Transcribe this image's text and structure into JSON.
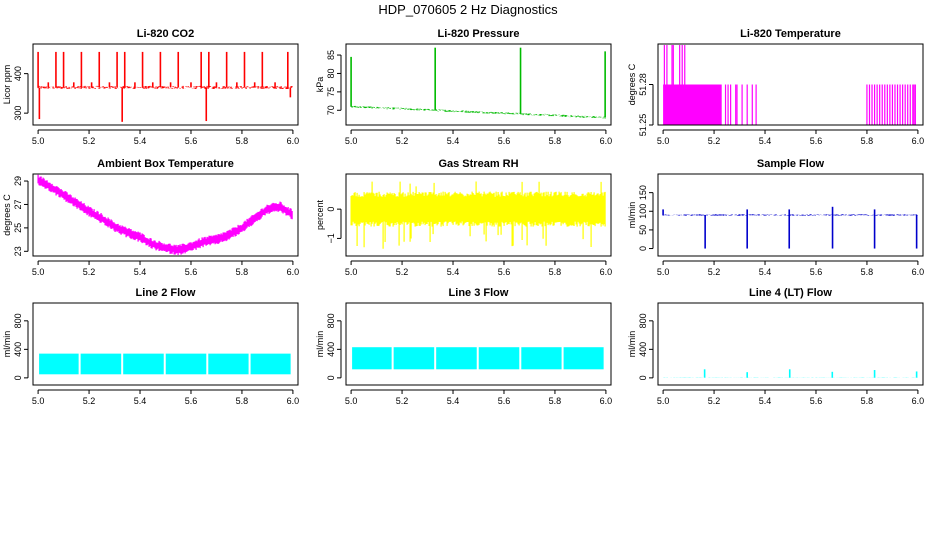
{
  "page": {
    "title": "HDP_070605  2 Hz Diagnostics"
  },
  "chart_data": [
    {
      "type": "line",
      "title": "Li-820 CO2",
      "ylabel": "Licor ppm",
      "color": "#ff0000",
      "xlim": [
        4.98,
        6.02
      ],
      "ylim": [
        270,
        475
      ],
      "xticks": [
        5.0,
        5.2,
        5.4,
        5.6,
        5.8,
        6.0
      ],
      "xtick_labels": [
        "5.0",
        "5.2",
        "5.4",
        "5.6",
        "5.8",
        "6.0"
      ],
      "yticks": [
        300,
        400
      ],
      "ytick_labels": [
        "300",
        "400"
      ],
      "series": [
        {
          "name": "CO2",
          "pattern": "noise",
          "base": 365,
          "amp": 4,
          "spikes": [
            {
              "x": 5.0,
              "to": 455
            },
            {
              "x": 5.07,
              "to": 455
            },
            {
              "x": 5.1,
              "to": 455
            },
            {
              "x": 5.17,
              "to": 455
            },
            {
              "x": 5.24,
              "to": 455
            },
            {
              "x": 5.31,
              "to": 455
            },
            {
              "x": 5.34,
              "to": 455
            },
            {
              "x": 5.41,
              "to": 455
            },
            {
              "x": 5.48,
              "to": 455
            },
            {
              "x": 5.55,
              "to": 455
            },
            {
              "x": 5.64,
              "to": 455
            },
            {
              "x": 5.67,
              "to": 455
            },
            {
              "x": 5.74,
              "to": 455
            },
            {
              "x": 5.81,
              "to": 455
            },
            {
              "x": 5.88,
              "to": 455
            },
            {
              "x": 5.98,
              "to": 455
            },
            {
              "x": 5.005,
              "to": 285
            },
            {
              "x": 5.33,
              "to": 278
            },
            {
              "x": 5.66,
              "to": 280
            },
            {
              "x": 5.99,
              "to": 340
            },
            {
              "x": 5.04,
              "to": 378
            },
            {
              "x": 5.14,
              "to": 378
            },
            {
              "x": 5.21,
              "to": 378
            },
            {
              "x": 5.28,
              "to": 378
            },
            {
              "x": 5.38,
              "to": 378
            },
            {
              "x": 5.45,
              "to": 378
            },
            {
              "x": 5.52,
              "to": 378
            },
            {
              "x": 5.6,
              "to": 378
            },
            {
              "x": 5.7,
              "to": 378
            },
            {
              "x": 5.78,
              "to": 378
            },
            {
              "x": 5.85,
              "to": 378
            },
            {
              "x": 5.93,
              "to": 378
            }
          ]
        }
      ]
    },
    {
      "type": "line",
      "title": "Li-820 Pressure",
      "ylabel": "kPa",
      "color": "#00bb00",
      "xlim": [
        4.98,
        6.02
      ],
      "ylim": [
        66,
        88
      ],
      "xticks": [
        5.0,
        5.2,
        5.4,
        5.6,
        5.8,
        6.0
      ],
      "xtick_labels": [
        "5.0",
        "5.2",
        "5.4",
        "5.6",
        "5.8",
        "6.0"
      ],
      "yticks": [
        70,
        75,
        80,
        85
      ],
      "ytick_labels": [
        "70",
        "75",
        "80",
        "85"
      ],
      "series": [
        {
          "name": "Pressure",
          "pattern": "decay",
          "start": 71,
          "end": 68,
          "amp": 0.3,
          "spikes": [
            {
              "x": 5.0,
              "to": 84.5
            },
            {
              "x": 5.33,
              "to": 87
            },
            {
              "x": 5.665,
              "to": 87
            },
            {
              "x": 5.997,
              "to": 86
            }
          ]
        }
      ]
    },
    {
      "type": "line",
      "title": "Li-820 Temperature",
      "ylabel": "degrees C",
      "color": "#ff00ff",
      "xlim": [
        4.98,
        6.02
      ],
      "ylim": [
        51.25,
        51.31
      ],
      "xticks": [
        5.0,
        5.2,
        5.4,
        5.6,
        5.8,
        6.0
      ],
      "xtick_labels": [
        "5.0",
        "5.2",
        "5.4",
        "5.6",
        "5.8",
        "6.0"
      ],
      "yticks": [
        51.25,
        51.28
      ],
      "ytick_labels": [
        "51.25",
        "51.28"
      ],
      "series": [
        {
          "name": "Temperature",
          "pattern": "steps",
          "base": 51.25,
          "high": 51.28,
          "top": 51.31,
          "fill_range": [
            5.0,
            5.23
          ],
          "top_spikes": [
            5.005,
            5.015,
            5.035,
            5.04,
            5.065,
            5.075,
            5.085
          ],
          "sparse": [
            5.245,
            5.255,
            5.265,
            5.285,
            5.29,
            5.31,
            5.33,
            5.35,
            5.365,
            5.8,
            5.81,
            5.82,
            5.83,
            5.84,
            5.85,
            5.86,
            5.87,
            5.88,
            5.89,
            5.9,
            5.91,
            5.92,
            5.93,
            5.94,
            5.95,
            5.96,
            5.97,
            5.98,
            5.985,
            5.99
          ]
        }
      ]
    },
    {
      "type": "line",
      "title": "Ambient Box Temperature",
      "ylabel": "degrees C",
      "color": "#ff00ff",
      "xlim": [
        4.98,
        6.02
      ],
      "ylim": [
        22.6,
        29.6
      ],
      "xticks": [
        5.0,
        5.2,
        5.4,
        5.6,
        5.8,
        6.0
      ],
      "xtick_labels": [
        "5.0",
        "5.2",
        "5.4",
        "5.6",
        "5.8",
        "6.0"
      ],
      "yticks": [
        23,
        25,
        27,
        29
      ],
      "ytick_labels": [
        "23",
        "25",
        "27",
        "29"
      ],
      "series": [
        {
          "name": "Ambient",
          "pattern": "curve",
          "amp": 0.45,
          "x": [
            5.0,
            5.05,
            5.1,
            5.15,
            5.2,
            5.25,
            5.3,
            5.35,
            5.4,
            5.45,
            5.5,
            5.55,
            5.6,
            5.65,
            5.7,
            5.75,
            5.8,
            5.85,
            5.9,
            5.95,
            6.0
          ],
          "y": [
            29.1,
            28.5,
            27.8,
            27.1,
            26.4,
            25.8,
            25.1,
            24.6,
            24.2,
            23.6,
            23.3,
            23.1,
            23.4,
            23.8,
            24.0,
            24.4,
            25.0,
            25.8,
            26.6,
            26.8,
            26.1
          ]
        }
      ]
    },
    {
      "type": "line",
      "title": "Gas Stream RH",
      "ylabel": "percent",
      "color": "#ffff00",
      "xlim": [
        4.98,
        6.02
      ],
      "ylim": [
        -1.6,
        1.2
      ],
      "xticks": [
        5.0,
        5.2,
        5.4,
        5.6,
        5.8,
        6.0
      ],
      "xtick_labels": [
        "5.0",
        "5.2",
        "5.4",
        "5.6",
        "5.8",
        "6.0"
      ],
      "yticks": [
        -1,
        0
      ],
      "ytick_labels": [
        "−1",
        "0"
      ],
      "series": [
        {
          "name": "RH",
          "pattern": "band",
          "low": -0.6,
          "high": 0.6,
          "min_spike": -1.4,
          "max_spike": 0.95
        }
      ]
    },
    {
      "type": "line",
      "title": "Sample Flow",
      "ylabel": "ml/min",
      "color": "#0000cc",
      "xlim": [
        4.98,
        6.02
      ],
      "ylim": [
        -20,
        200
      ],
      "xticks": [
        5.0,
        5.2,
        5.4,
        5.6,
        5.8,
        6.0
      ],
      "xtick_labels": [
        "5.0",
        "5.2",
        "5.4",
        "5.6",
        "5.8",
        "6.0"
      ],
      "yticks": [
        0,
        50,
        100,
        150
      ],
      "ytick_labels": [
        "0",
        "50",
        "100",
        "150"
      ],
      "series": [
        {
          "name": "Sample",
          "pattern": "noise",
          "base": 90,
          "amp": 2,
          "spikes": [
            {
              "x": 5.0,
              "to": 105
            },
            {
              "x": 5.165,
              "to": 0
            },
            {
              "x": 5.33,
              "to": 105
            },
            {
              "x": 5.33,
              "to": 0
            },
            {
              "x": 5.495,
              "to": 105
            },
            {
              "x": 5.495,
              "to": 0
            },
            {
              "x": 5.665,
              "to": 112
            },
            {
              "x": 5.665,
              "to": 0
            },
            {
              "x": 5.83,
              "to": 105
            },
            {
              "x": 5.83,
              "to": 0
            },
            {
              "x": 5.995,
              "to": 0
            }
          ]
        }
      ]
    },
    {
      "type": "line",
      "title": "Line 2 Flow",
      "ylabel": "ml/min",
      "color": "#00ffff",
      "xlim": [
        4.98,
        6.02
      ],
      "ylim": [
        -100,
        1050
      ],
      "xticks": [
        5.0,
        5.2,
        5.4,
        5.6,
        5.8,
        6.0
      ],
      "xtick_labels": [
        "5.0",
        "5.2",
        "5.4",
        "5.6",
        "5.8",
        "6.0"
      ],
      "yticks": [
        0,
        400,
        800
      ],
      "ytick_labels": [
        "0",
        "400",
        "800"
      ],
      "series": [
        {
          "name": "Line 2",
          "pattern": "blocks",
          "low": 50,
          "high": 340,
          "gaps": [
            5.163,
            5.33,
            5.497,
            5.664,
            5.83
          ],
          "end": 5.995
        }
      ]
    },
    {
      "type": "line",
      "title": "Line 3 Flow",
      "ylabel": "ml/min",
      "color": "#00ffff",
      "xlim": [
        4.98,
        6.02
      ],
      "ylim": [
        -100,
        1050
      ],
      "xticks": [
        5.0,
        5.2,
        5.4,
        5.6,
        5.8,
        6.0
      ],
      "xtick_labels": [
        "5.0",
        "5.2",
        "5.4",
        "5.6",
        "5.8",
        "6.0"
      ],
      "yticks": [
        0,
        400,
        800
      ],
      "ytick_labels": [
        "0",
        "400",
        "800"
      ],
      "series": [
        {
          "name": "Line 3",
          "pattern": "blocks",
          "low": 120,
          "high": 430,
          "gaps": [
            5.163,
            5.33,
            5.497,
            5.664,
            5.83
          ],
          "end": 5.995
        }
      ]
    },
    {
      "type": "line",
      "title": "Line 4 (LT) Flow",
      "ylabel": "ml/min",
      "color": "#00ffff",
      "xlim": [
        4.98,
        6.02
      ],
      "ylim": [
        -100,
        1050
      ],
      "xticks": [
        5.0,
        5.2,
        5.4,
        5.6,
        5.8,
        6.0
      ],
      "xtick_labels": [
        "5.0",
        "5.2",
        "5.4",
        "5.6",
        "5.8",
        "6.0"
      ],
      "yticks": [
        0,
        400,
        800
      ],
      "ytick_labels": [
        "0",
        "400",
        "800"
      ],
      "series": [
        {
          "name": "Line 4",
          "pattern": "noise",
          "base": 3,
          "amp": 2,
          "spikes": [
            {
              "x": 5.163,
              "to": 120
            },
            {
              "x": 5.33,
              "to": 80
            },
            {
              "x": 5.497,
              "to": 120
            },
            {
              "x": 5.664,
              "to": 85
            },
            {
              "x": 5.83,
              "to": 110
            },
            {
              "x": 5.995,
              "to": 90
            }
          ]
        }
      ]
    }
  ]
}
